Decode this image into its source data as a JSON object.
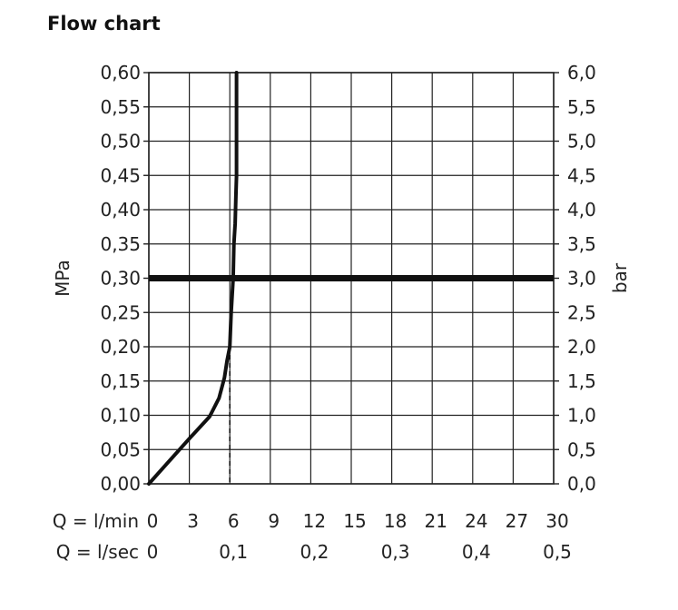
{
  "chart_data": {
    "type": "line",
    "title": "Flow chart",
    "x_axis": {
      "ticks_lmin": [
        "0",
        "3",
        "6",
        "9",
        "12",
        "15",
        "18",
        "21",
        "24",
        "27",
        "30"
      ],
      "label_lmin": "Q = l/min",
      "ticks_lsec": [
        "0",
        "0,1",
        "0,2",
        "0,3",
        "0,4",
        "0,5"
      ],
      "label_lsec": "Q = l/sec",
      "range": [
        0,
        30
      ]
    },
    "y_axis_left": {
      "label": "MPa",
      "ticks": [
        "0,00",
        "0,05",
        "0,10",
        "0,15",
        "0,20",
        "0,25",
        "0,30",
        "0,35",
        "0,40",
        "0,45",
        "0,50",
        "0,55",
        "0,60"
      ],
      "range": [
        0,
        0.6
      ]
    },
    "y_axis_right": {
      "label": "bar",
      "ticks": [
        "0,0",
        "0,5",
        "1,0",
        "1,5",
        "2,0",
        "2,5",
        "3,0",
        "3,5",
        "4,0",
        "4,5",
        "5,0",
        "5,5",
        "6,0"
      ],
      "range": [
        0,
        6
      ]
    },
    "grid": true,
    "series": [
      {
        "x": [
          0,
          1.5,
          3,
          4.5,
          5.2,
          5.6,
          5.8,
          6.0,
          6.1,
          6.25,
          6.3,
          6.4,
          6.45,
          6.5,
          6.5,
          6.5
        ],
        "y": [
          0,
          0.033,
          0.066,
          0.098,
          0.125,
          0.155,
          0.18,
          0.2,
          0.25,
          0.3,
          0.35,
          0.38,
          0.42,
          0.45,
          0.5,
          0.6
        ]
      }
    ],
    "reference_line": {
      "y": 0.3
    },
    "dashed_marker": {
      "x": 6,
      "y": 0.2
    }
  }
}
